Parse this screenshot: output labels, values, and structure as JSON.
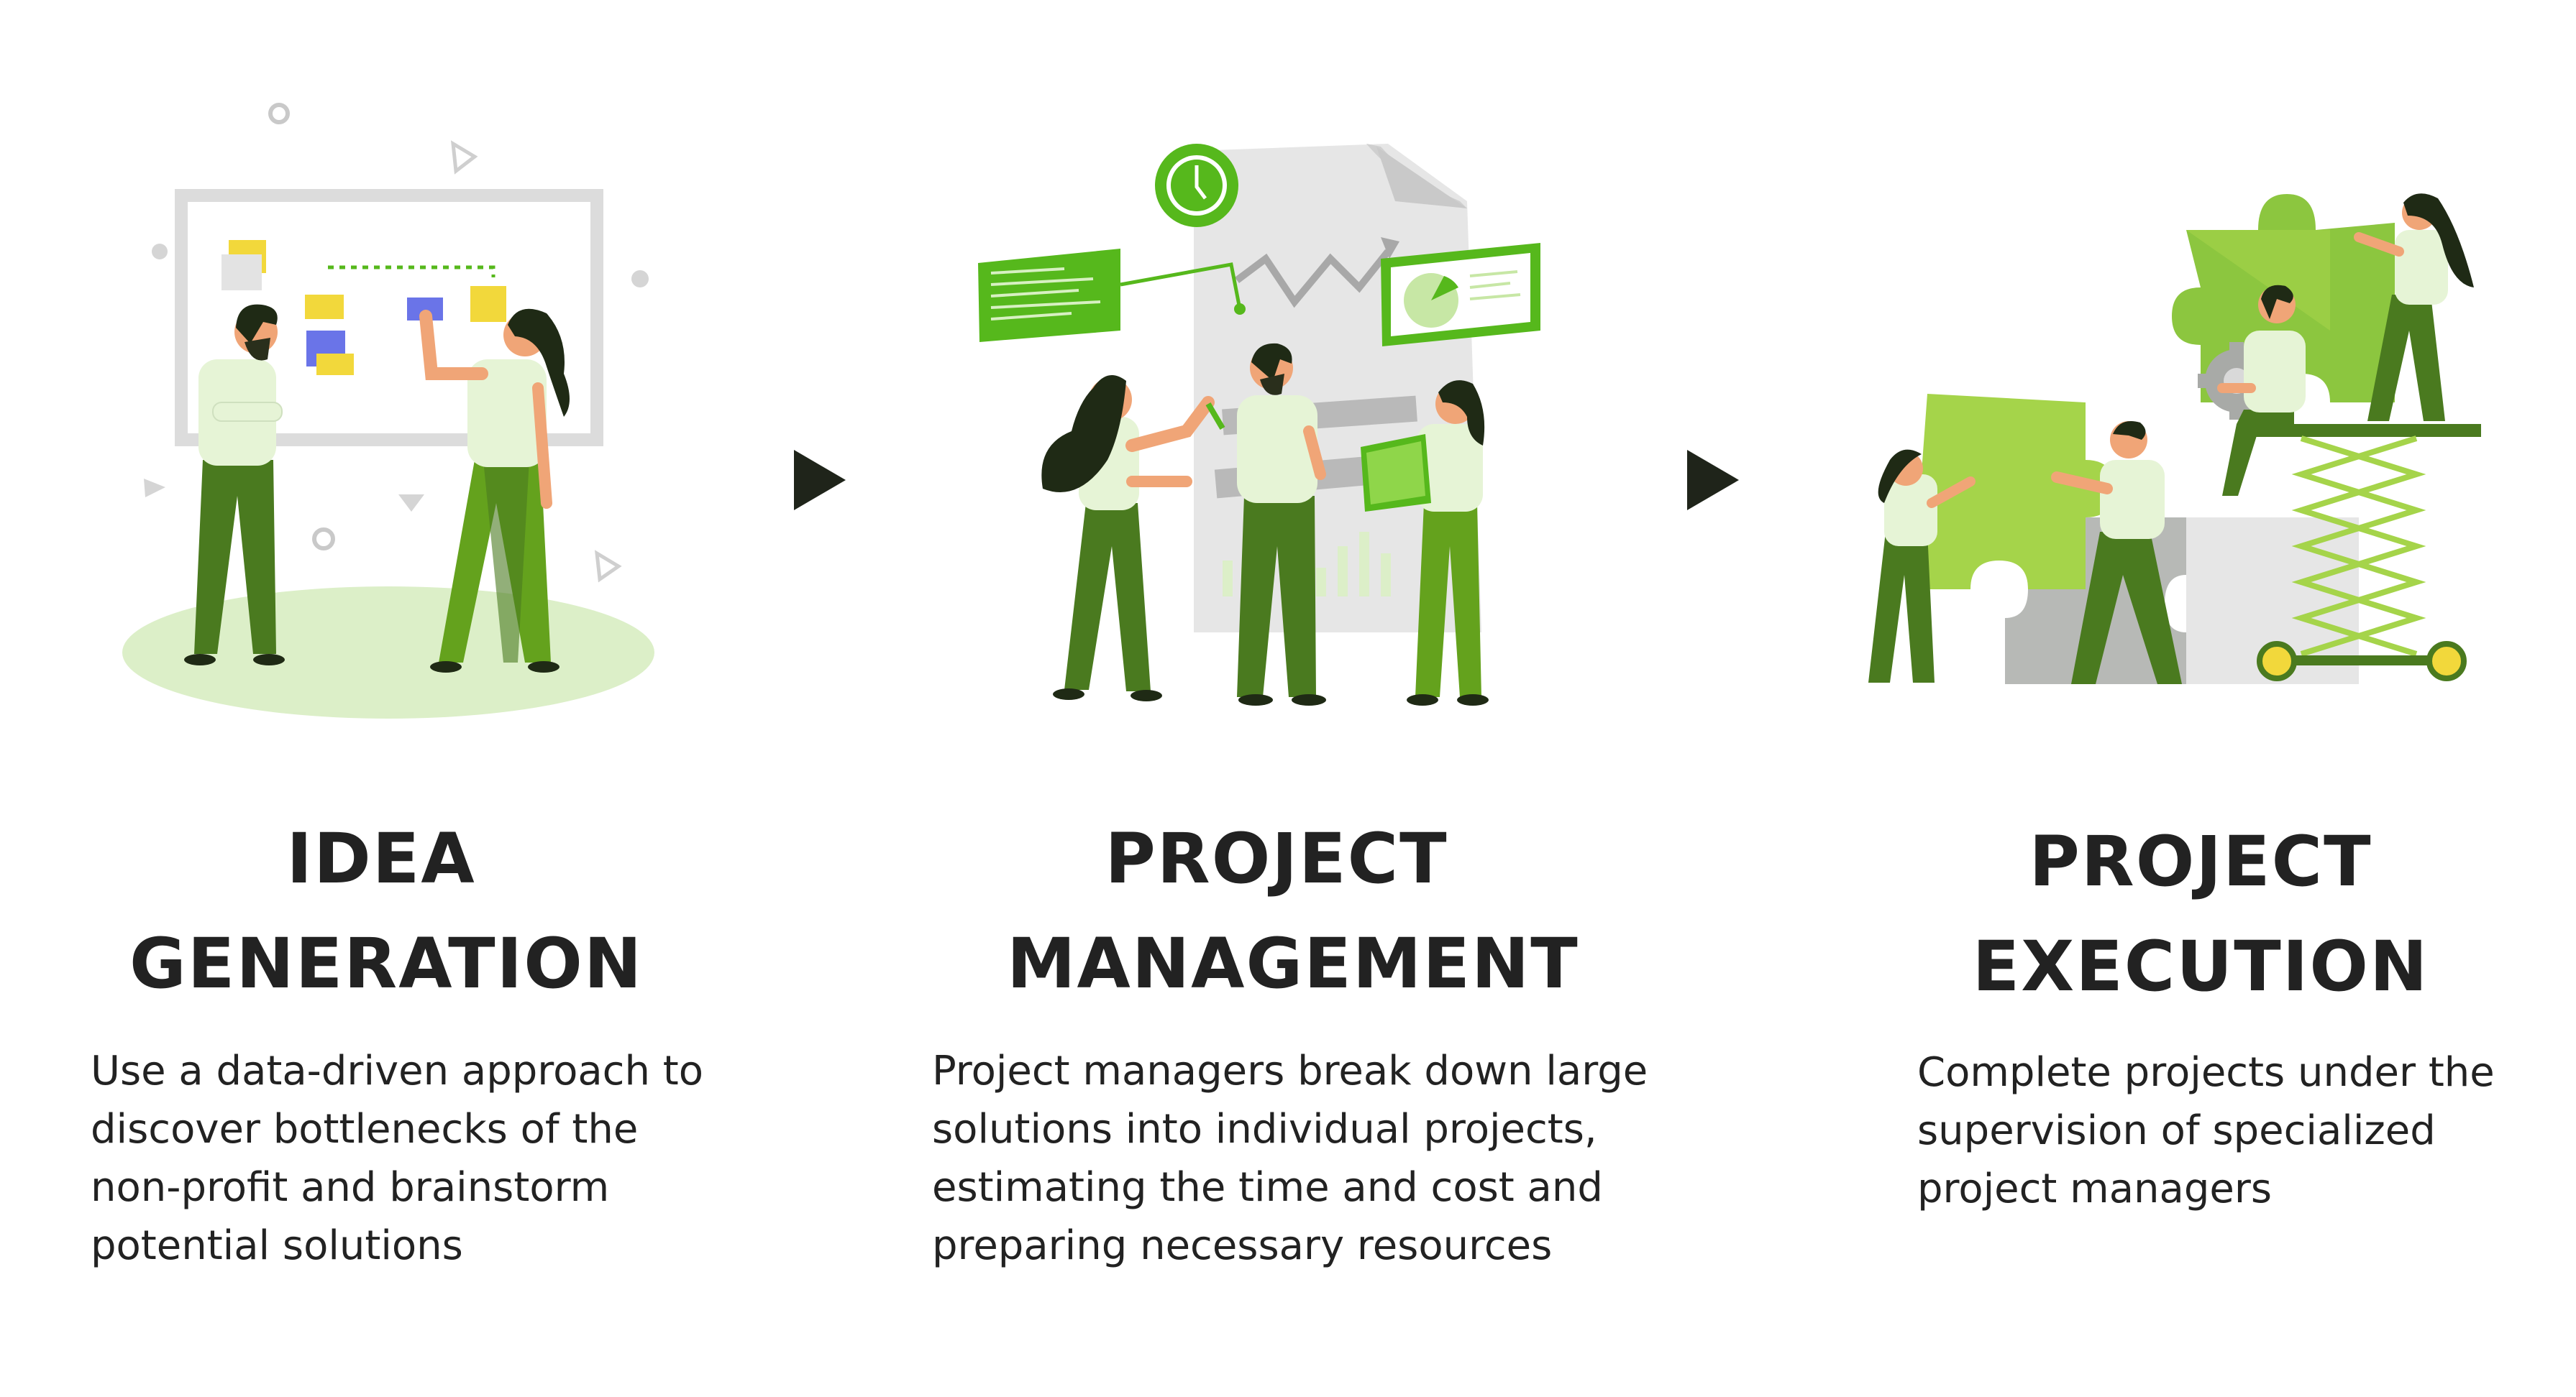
{
  "steps": [
    {
      "title_lines": [
        "IDEA",
        "GENERATION"
      ],
      "description_lines": [
        "Use a data-driven approach to",
        "discover bottlenecks of the",
        "non-profit and brainstorm",
        "potential solutions"
      ],
      "illustration": "team-brainstorm-whiteboard"
    },
    {
      "title_lines": [
        "PROJECT",
        "MANAGEMENT"
      ],
      "description_lines": [
        "Project managers break down large",
        "solutions into individual projects,",
        "estimating the time and cost and",
        "preparing necessary resources"
      ],
      "illustration": "team-planning-charts"
    },
    {
      "title_lines": [
        "PROJECT",
        "EXECUTION"
      ],
      "description_lines": [
        "Complete projects under the",
        "supervision of specialized",
        "project managers"
      ],
      "illustration": "team-assembling-puzzle"
    }
  ],
  "connectors": [
    "arrow-right-icon",
    "arrow-right-icon"
  ],
  "colors": {
    "dark_green": "#4a7a1f",
    "mid_green": "#64a21d",
    "bright_green": "#56b81c",
    "lime": "#a5d44a",
    "pale_green": "#dcefc8",
    "shirt": "#e6f4d6",
    "gray": "#b7b9b6",
    "light_gray": "#e6e6e6",
    "yellow": "#f2d83b",
    "blue": "#6a74e8",
    "text": "#222222",
    "arrow": "#1f241a"
  }
}
